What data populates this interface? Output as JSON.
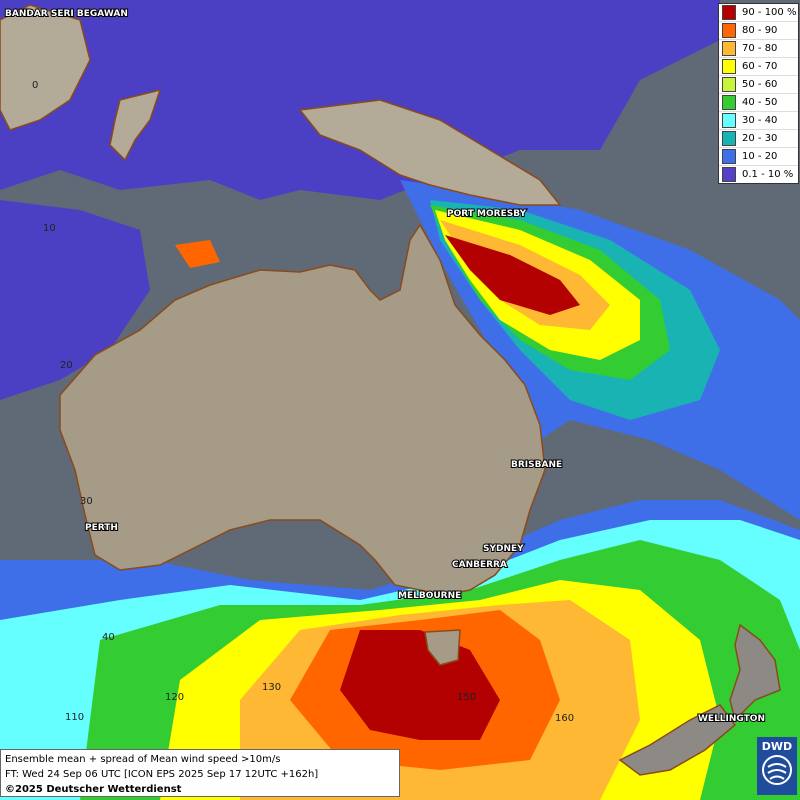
{
  "legend": {
    "items": [
      {
        "label": "90 - 100 %",
        "color": "#b30000"
      },
      {
        "label": "80 - 90",
        "color": "#ff6600"
      },
      {
        "label": "70 - 80",
        "color": "#ffb833"
      },
      {
        "label": "60 - 70",
        "color": "#ffff00"
      },
      {
        "label": "50 - 60",
        "color": "#c8f53c"
      },
      {
        "label": "40 - 50",
        "color": "#33cc33"
      },
      {
        "label": "30 - 40",
        "color": "#66ffff"
      },
      {
        "label": "20 - 30",
        "color": "#19b3b3"
      },
      {
        "label": "10 - 20",
        "color": "#3f6fe8"
      },
      {
        "label": "0.1 - 10 %",
        "color": "#5540c8"
      }
    ]
  },
  "cities": {
    "bandar": "BANDAR SERI BEGAWAN",
    "port_moresby": "PORT MORESBY",
    "brisbane": "BRISBANE",
    "perth": "PERTH",
    "sydney": "SYDNEY",
    "canberra": "CANBERRA",
    "melbourne": "MELBOURNE",
    "wellington": "WELLINGTON"
  },
  "grid_labels": {
    "lat_0": "0",
    "lat_10": "10",
    "lat_20": "20",
    "lat_30": "30",
    "lat_40": "40",
    "lon_110": "110",
    "lon_120": "120",
    "lon_130": "130",
    "lon_150": "150",
    "lon_160": "160"
  },
  "caption": {
    "line1": "Ensemble mean + spread of Mean wind speed >10m/s",
    "line2": "FT: Wed 24 Sep 06 UTC [ICON EPS 2025 Sep 17 12UTC +162h]",
    "line3": "©2025 Deutscher Wetterdienst"
  },
  "logo": {
    "text": "DWD"
  }
}
